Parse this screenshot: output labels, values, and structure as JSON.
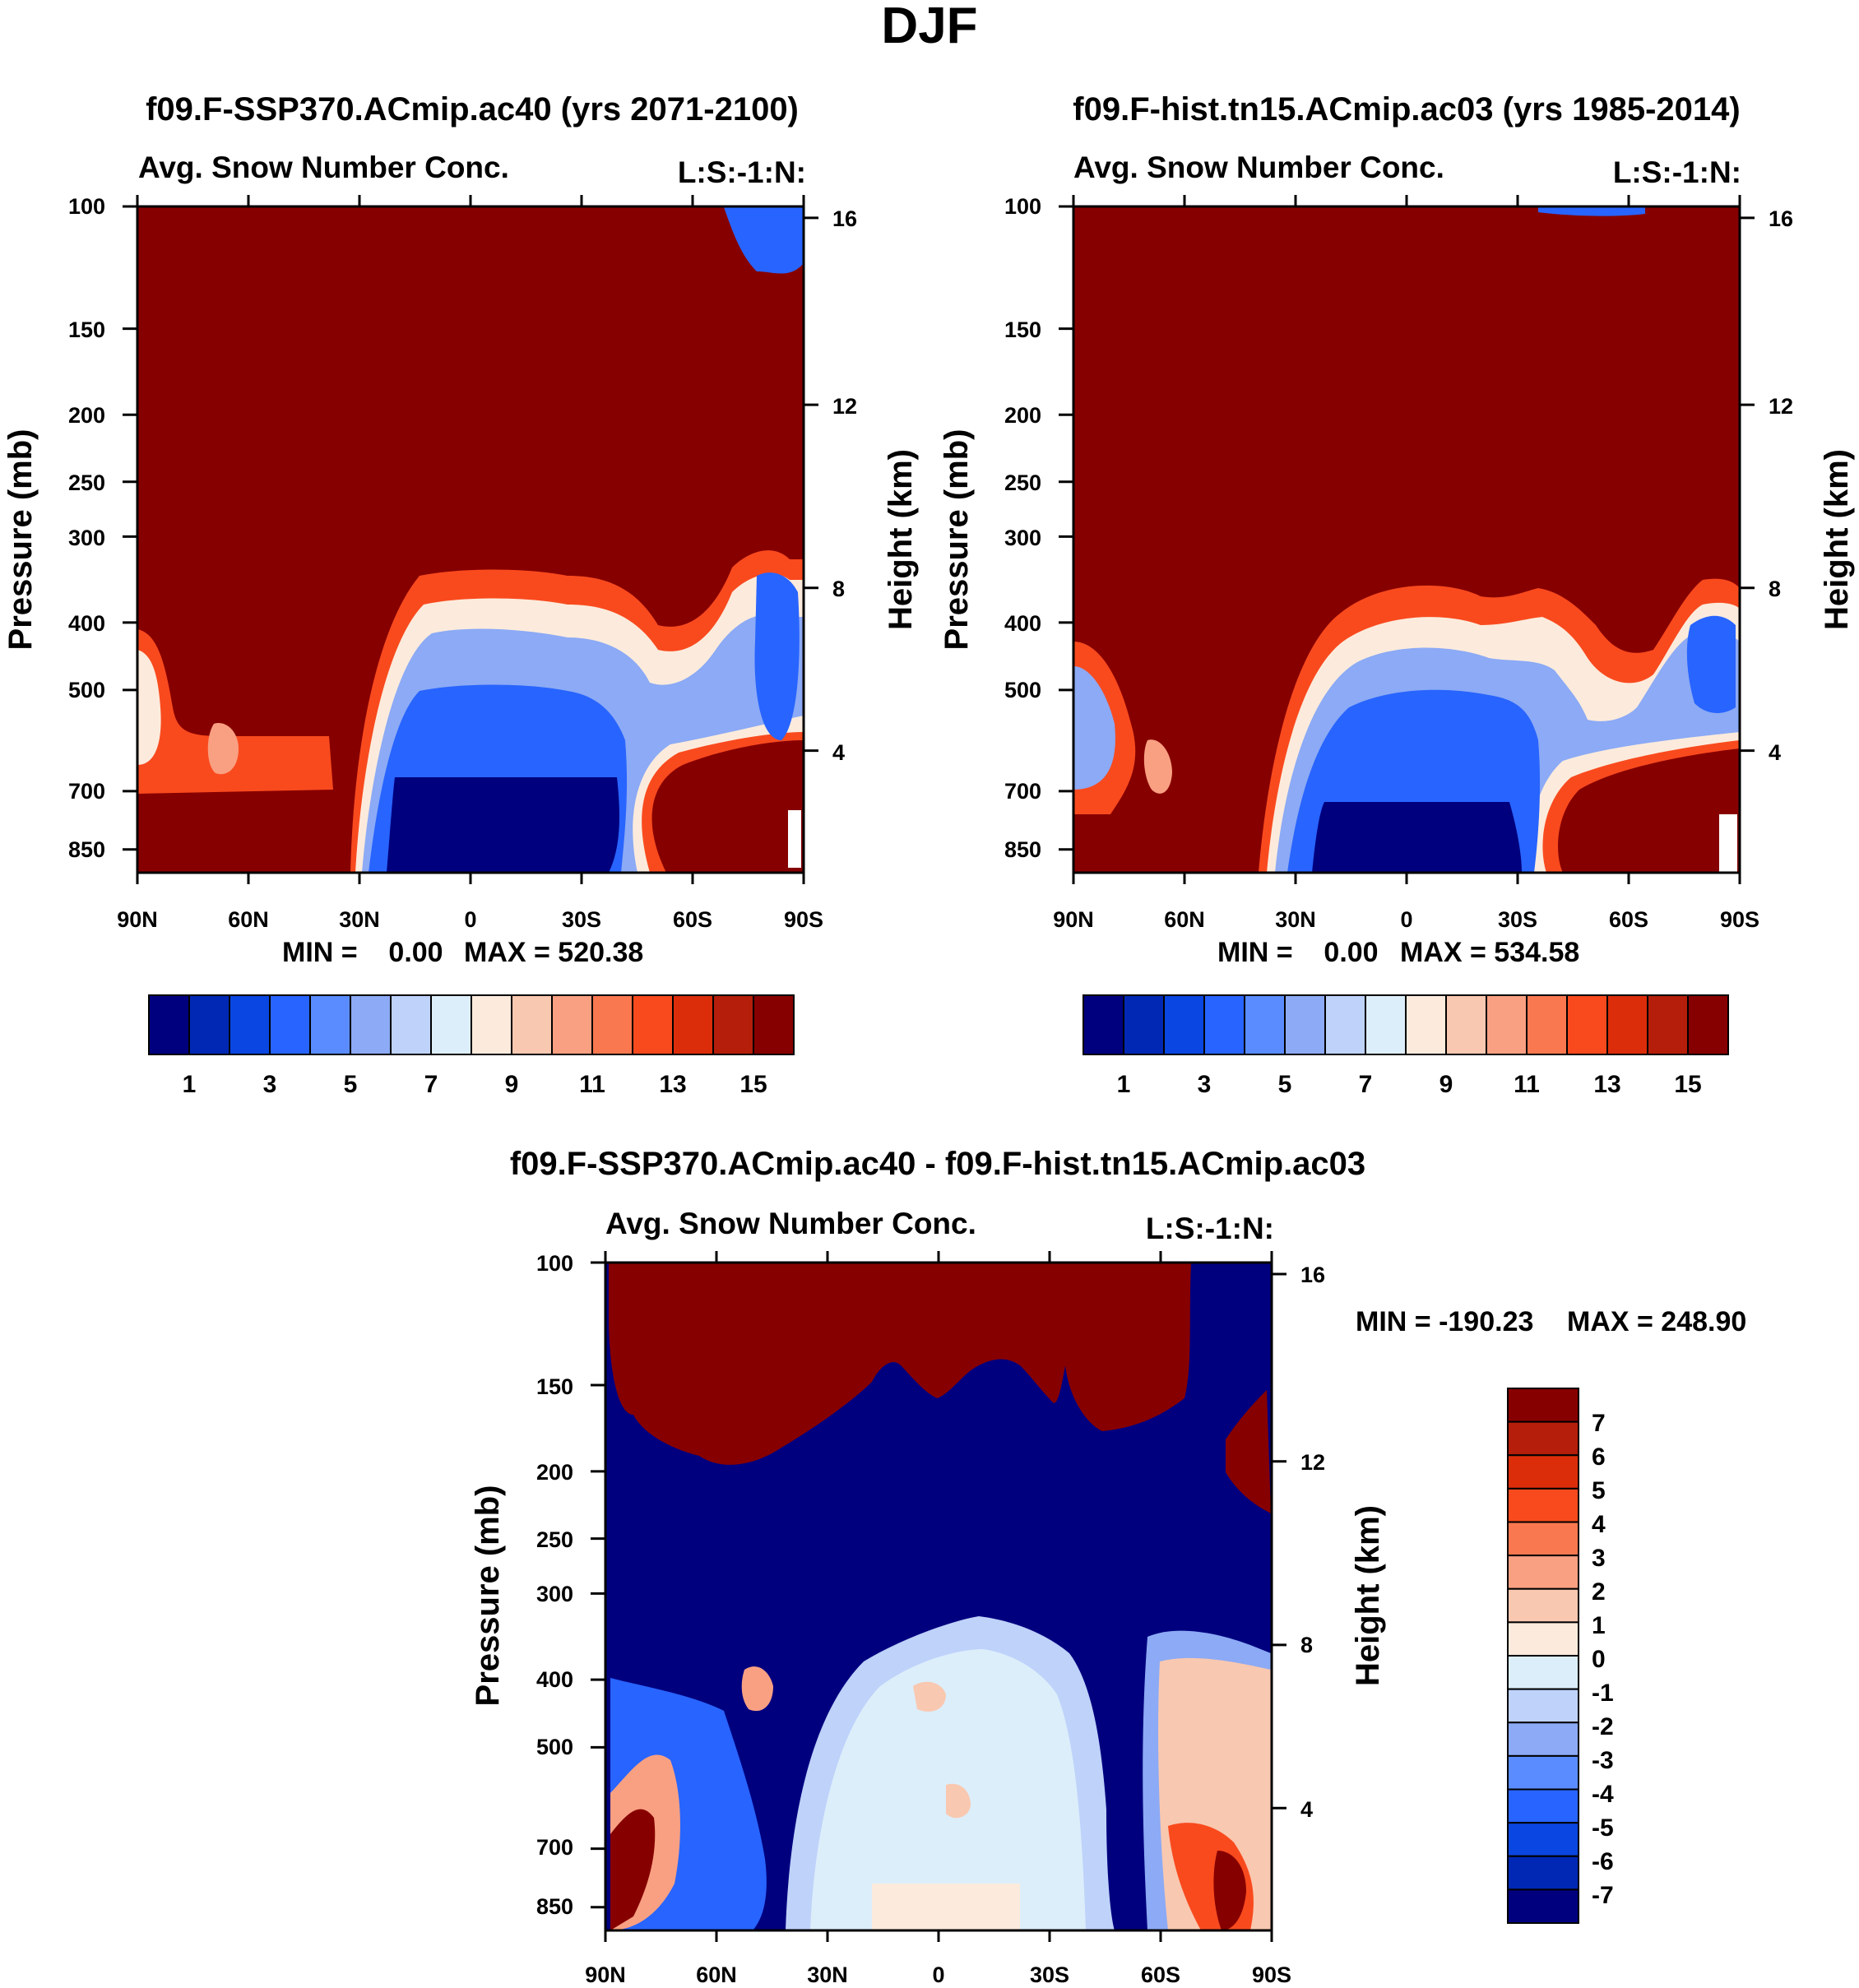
{
  "figure_title": "DJF",
  "chart_data": [
    {
      "type": "heatmap",
      "title": "f09.F-SSP370.ACmip.ac40 (yrs 2071-2100)",
      "subtitle_left": "Avg. Snow Number Conc.",
      "subtitle_right": "L:S:-1:N:",
      "xlabel": "",
      "ylabel": "Pressure (mb)",
      "ylabel_right": "Height (km)",
      "x_ticks": [
        "90N",
        "60N",
        "30N",
        "0",
        "30S",
        "60S",
        "90S"
      ],
      "y_ticks": [
        "100",
        "150",
        "200",
        "250",
        "300",
        "400",
        "500",
        "700",
        "850"
      ],
      "y_ticks_right": [
        "16",
        "12",
        "8",
        "4"
      ],
      "min_label": "MIN =    0.00",
      "max_label": "MAX = 520.38",
      "colorbar_labels": [
        "1",
        "3",
        "5",
        "7",
        "9",
        "11",
        "13",
        "15"
      ]
    },
    {
      "type": "heatmap",
      "title": "f09.F-hist.tn15.ACmip.ac03 (yrs 1985-2014)",
      "subtitle_left": "Avg. Snow Number Conc.",
      "subtitle_right": "L:S:-1:N:",
      "xlabel": "",
      "ylabel": "Pressure (mb)",
      "ylabel_right": "Height (km)",
      "x_ticks": [
        "90N",
        "60N",
        "30N",
        "0",
        "30S",
        "60S",
        "90S"
      ],
      "y_ticks": [
        "100",
        "150",
        "200",
        "250",
        "300",
        "400",
        "500",
        "700",
        "850"
      ],
      "y_ticks_right": [
        "16",
        "12",
        "8",
        "4"
      ],
      "min_label": "MIN =    0.00",
      "max_label": "MAX = 534.58",
      "colorbar_labels": [
        "1",
        "3",
        "5",
        "7",
        "9",
        "11",
        "13",
        "15"
      ]
    },
    {
      "type": "heatmap",
      "title": "f09.F-SSP370.ACmip.ac40 - f09.F-hist.tn15.ACmip.ac03",
      "subtitle_left": "Avg. Snow Number Conc.",
      "subtitle_right": "L:S:-1:N:",
      "xlabel": "",
      "ylabel": "Pressure (mb)",
      "ylabel_right": "Height (km)",
      "x_ticks": [
        "90N",
        "60N",
        "30N",
        "0",
        "30S",
        "60S",
        "90S"
      ],
      "y_ticks": [
        "100",
        "150",
        "200",
        "250",
        "300",
        "400",
        "500",
        "700",
        "850"
      ],
      "y_ticks_right": [
        "16",
        "12",
        "8",
        "4"
      ],
      "min_label": "MIN = -190.23",
      "max_label": "MAX = 248.90",
      "colorbar_labels": [
        "7",
        "6",
        "5",
        "4",
        "3",
        "2",
        "1",
        "0",
        "-1",
        "-2",
        "-3",
        "-4",
        "-5",
        "-6",
        "-7"
      ]
    }
  ],
  "colors": {
    "seq_colorbar": [
      "#00007f",
      "#0028b4",
      "#0a46e1",
      "#2864ff",
      "#5a8cff",
      "#8caaf5",
      "#bed2fa",
      "#dceefa",
      "#fcebdc",
      "#f9c8b0",
      "#f9a082",
      "#f97850",
      "#f94a1e",
      "#dc2d0a",
      "#b41e0a",
      "#870000"
    ],
    "diff_colorbar": [
      "#870000",
      "#b41e0a",
      "#dc2d0a",
      "#f94a1e",
      "#f97850",
      "#f9a082",
      "#f9c8b0",
      "#fcebdc",
      "#dceefa",
      "#bed2fa",
      "#8caaf5",
      "#5a8cff",
      "#2864ff",
      "#0a46e1",
      "#0028b4",
      "#00007f"
    ]
  }
}
